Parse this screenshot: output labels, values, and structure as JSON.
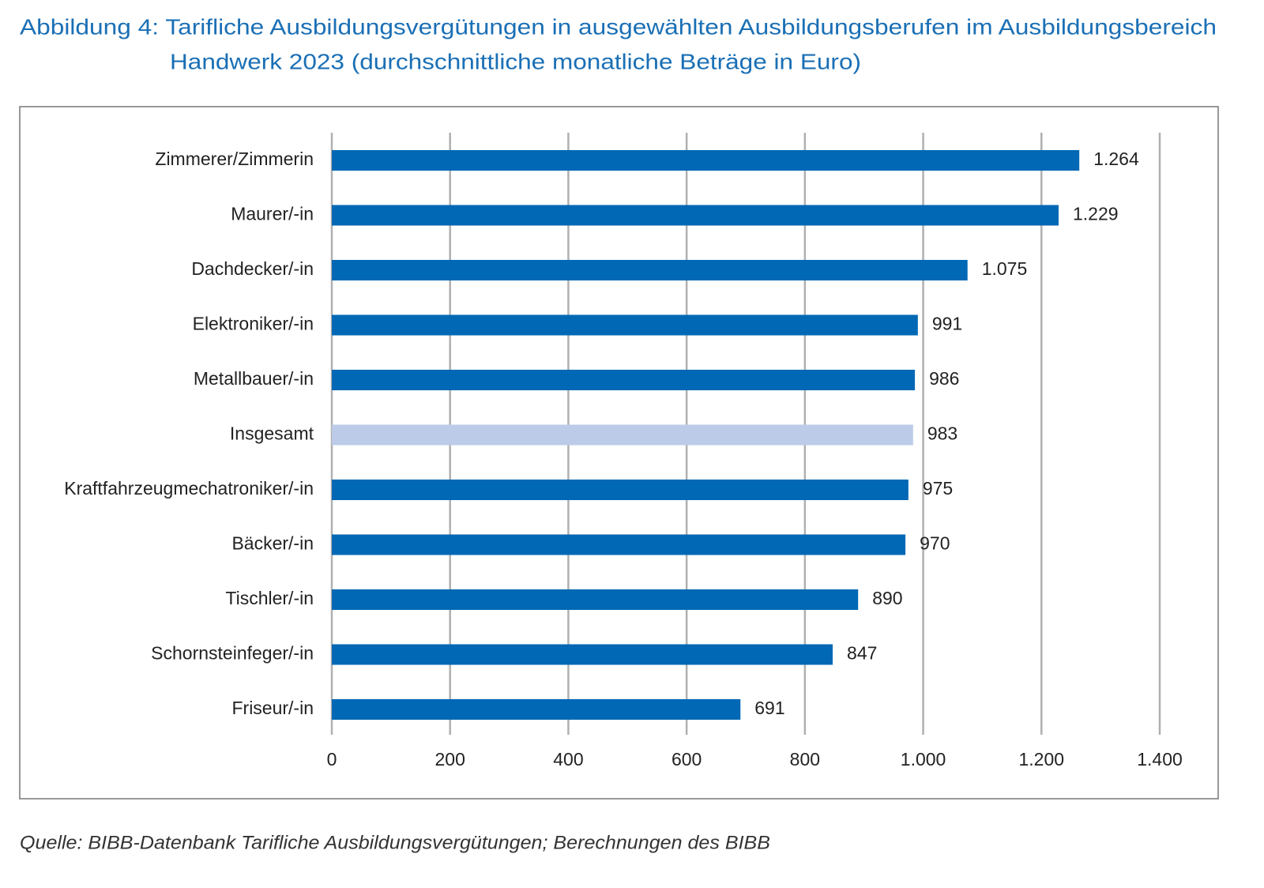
{
  "chart_data": {
    "type": "bar",
    "title": [
      "Abbildung 4: Tarifliche Ausbildungsvergütungen in ausgewählten Ausbildungsberufen im Ausbildungsbereich",
      "Handwerk 2023 (durchschnittliche monatliche Beträge in Euro)"
    ],
    "categories": [
      "Zimmerer/Zimmerin",
      "Maurer/-in",
      "Dachdecker/-in",
      "Elektroniker/-in",
      "Metallbauer/-in",
      "Insgesamt",
      "Kraftfahrzeugmechatroniker/-in",
      "Bäcker/-in",
      "Tischler/-in",
      "Schornsteinfeger/-in",
      "Friseur/-in"
    ],
    "values": [
      1264,
      1229,
      1075,
      991,
      986,
      983,
      975,
      970,
      890,
      847,
      691
    ],
    "value_labels": [
      "1.264",
      "1.229",
      "1.075",
      "991",
      "986",
      "983",
      "975",
      "970",
      "890",
      "847",
      "691"
    ],
    "colors": [
      "#0068b4",
      "#0068b4",
      "#0068b4",
      "#0068b4",
      "#0068b4",
      "#bccbe8",
      "#0068b4",
      "#0068b4",
      "#0068b4",
      "#0068b4",
      "#0068b4"
    ],
    "xlim": [
      0,
      1400
    ],
    "xticks": [
      0,
      200,
      400,
      600,
      800,
      {
        "value": 1000,
        "label": "1.000"
      },
      {
        "value": 1200,
        "label": "1.200"
      },
      {
        "value": 1400,
        "label": "1.400"
      }
    ],
    "grid": true,
    "source": "Quelle: BIBB-Datenbank Tarifliche Ausbildungsvergütungen; Berechnungen des BIBB"
  }
}
